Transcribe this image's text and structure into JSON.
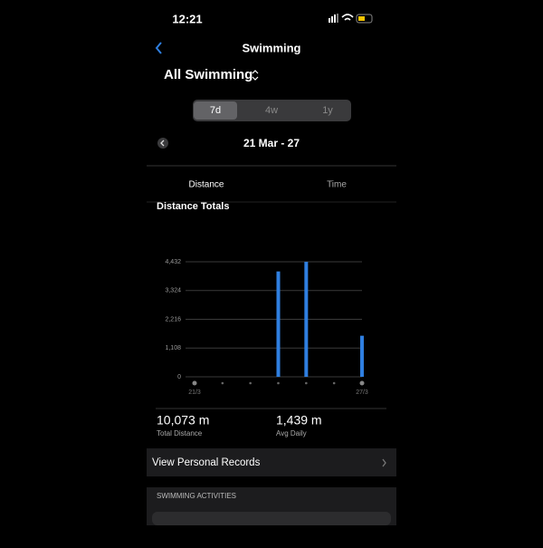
{
  "status_bar": {
    "time": "12:21"
  },
  "header": {
    "title": "Swimming"
  },
  "filter": "All Swimming",
  "segments": [
    "7d",
    "4w",
    "1y"
  ],
  "selected_segment": 0,
  "date_range": "21 Mar - 27",
  "tabs": [
    "Distance",
    "Time"
  ],
  "selected_tab": 0,
  "chart_data": {
    "type": "bar",
    "title": "Distance Totals",
    "categories": [
      "21/3",
      null,
      null,
      null,
      null,
      null,
      "27/3"
    ],
    "values": [
      0,
      0,
      0,
      4060,
      4430,
      0,
      1583
    ],
    "color": "#2f7fe0",
    "ylim": [
      0,
      4432
    ],
    "yticks": [
      0,
      {
        "value": 1108,
        "label": "1,108"
      },
      {
        "value": 2216,
        "label": "2,216"
      },
      {
        "value": 3324,
        "label": "3,324"
      },
      {
        "value": 4432,
        "label": "4,432"
      }
    ],
    "grid": true
  },
  "stats": [
    {
      "value": "10,073 m",
      "label": "Total Distance"
    },
    {
      "value": "1,439 m",
      "label": "Avg Daily"
    }
  ],
  "records_link": "View Personal Records",
  "section_title": "SWIMMING ACTIVITIES"
}
